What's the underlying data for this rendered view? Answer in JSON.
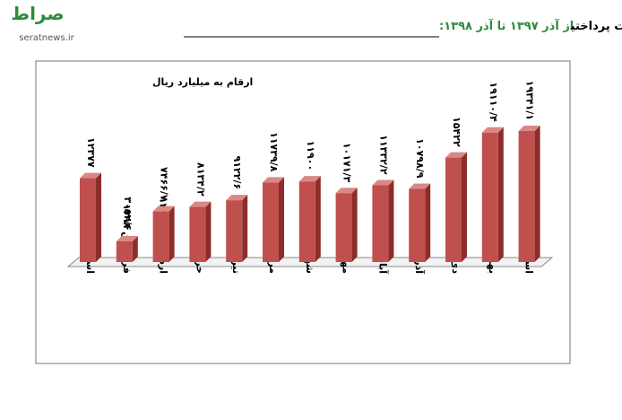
{
  "watermark": {
    "logo": "صراط",
    "site": "seratnews.ir"
  },
  "chart_data": {
    "type": "bar",
    "title": "روند میزان تسهیلات پرداختی",
    "subtitle": "از آذر ۱۳۹۷ تا آذر ۱۳۹۸:",
    "unit_label": "ارقام به میلیارد ریال",
    "color": "#c0504d",
    "categories": [
      "اسفند ۱۳۹۷",
      "فروردین ۱۳۹۸",
      "اردیبهشت ۱۳۹۸",
      "خرداد ۱۳۹۸",
      "تیر ۱۳۹۸",
      "مرداد ۱۳۹۸",
      "شهریور ۱۳۹۸",
      "مهر ۱۳۹۸",
      "آبان ۱۳۹۸",
      "آذر ۱۳۹۸",
      "دی ۱۳۹۸",
      "بهمن ۱۳۹۸",
      "اسفند ۱۳۹۸"
    ],
    "values": [
      12377,
      3052.6,
      7466.7,
      8134.2,
      9122.6,
      11739.8,
      11900,
      10171.3,
      11332.2,
      10798.9,
      15422,
      19110.4,
      19341.1
    ],
    "value_labels": [
      "۱۲۳۷۷",
      "۳۰۵۲/۶",
      "۷۴۶۶/۷",
      "۸۱۳۴/۲",
      "۹۱۲۲/۶",
      "۱۱۷۳۹/۸",
      "۱۱۹۰۰",
      "۱۰۱۷۱/۳",
      "۱۱۳۳۲/۲",
      "۱۰۷۹۸/۹",
      "۱۵۴۲۲",
      "۱۹۱۱۰/۴",
      "۱۹۳۴۱/۱"
    ]
  }
}
